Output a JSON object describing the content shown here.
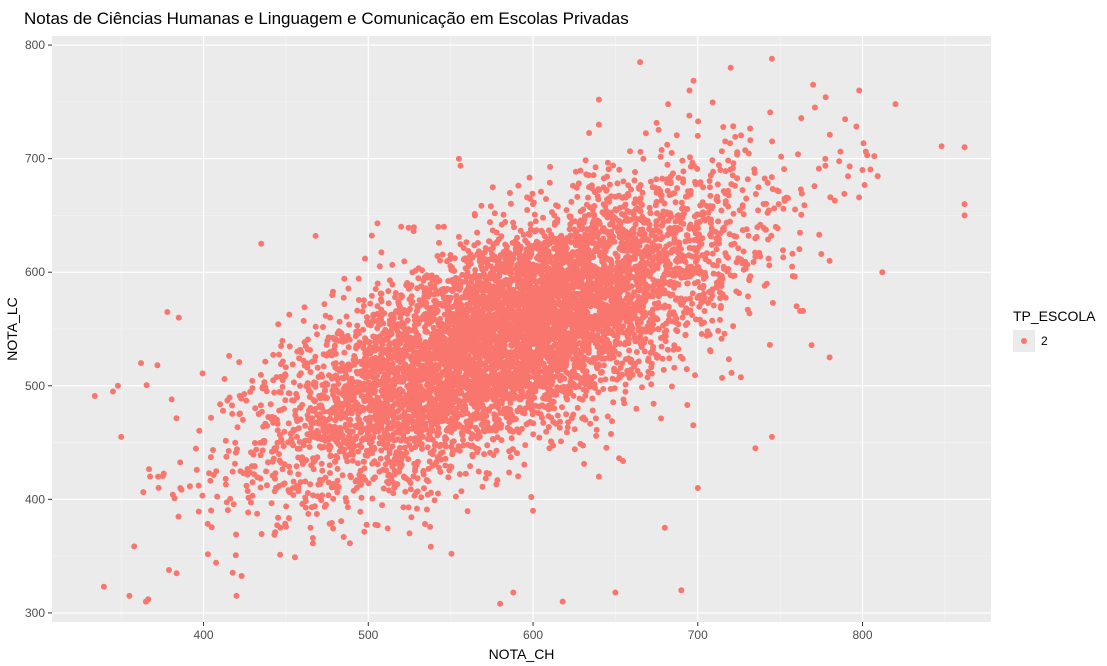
{
  "chart_data": {
    "type": "scatter",
    "title": "Notas de Ciências Humanas e Linguagem e Comunicação em Escolas Privadas",
    "xlabel": "NOTA_CH",
    "ylabel": "NOTA_LC",
    "xlim": [
      308,
      878
    ],
    "ylim": [
      292,
      808
    ],
    "x_ticks": [
      400,
      500,
      600,
      700,
      800
    ],
    "y_ticks": [
      300,
      400,
      500,
      600,
      700,
      800
    ],
    "grid": true,
    "panel_background": "#ebebeb",
    "point_color": "#F8766D",
    "legend": {
      "title": "TP_ESCOLA",
      "placement": "right",
      "entries": [
        "2"
      ]
    },
    "series": [
      {
        "name": "2",
        "distribution": {
          "approx_points": 30000,
          "mean_x": 585,
          "mean_y": 545,
          "sd_x": 68,
          "sd_y": 62,
          "correlation": 0.7
        },
        "sample_points": [
          [
            334,
            491
          ],
          [
            345,
            495
          ],
          [
            348,
            500
          ],
          [
            350,
            455
          ],
          [
            362,
            520
          ],
          [
            372,
            518
          ],
          [
            378,
            565
          ],
          [
            385,
            560
          ],
          [
            435,
            625
          ],
          [
            468,
            632
          ],
          [
            355,
            315
          ],
          [
            365,
            310
          ],
          [
            420,
            315
          ],
          [
            580,
            308
          ],
          [
            640,
            752
          ],
          [
            665,
            785
          ],
          [
            682,
            748
          ],
          [
            695,
            760
          ],
          [
            720,
            780
          ],
          [
            745,
            788
          ],
          [
            770,
            765
          ],
          [
            798,
            760
          ],
          [
            820,
            748
          ],
          [
            848,
            711
          ],
          [
            862,
            710
          ],
          [
            862,
            660
          ],
          [
            862,
            650
          ],
          [
            812,
            600
          ],
          [
            780,
            525
          ],
          [
            745,
            455
          ],
          [
            735,
            445
          ],
          [
            690,
            320
          ],
          [
            650,
            318
          ],
          [
            618,
            310
          ],
          [
            588,
            318
          ],
          [
            498,
            612
          ],
          [
            520,
            640
          ],
          [
            555,
            700
          ],
          [
            600,
            660
          ],
          [
            640,
            730
          ],
          [
            700,
            720
          ],
          [
            800,
            690
          ],
          [
            780,
            610
          ],
          [
            760,
            570
          ],
          [
            700,
            410
          ],
          [
            680,
            375
          ],
          [
            640,
            420
          ],
          [
            600,
            390
          ]
        ]
      }
    ]
  }
}
